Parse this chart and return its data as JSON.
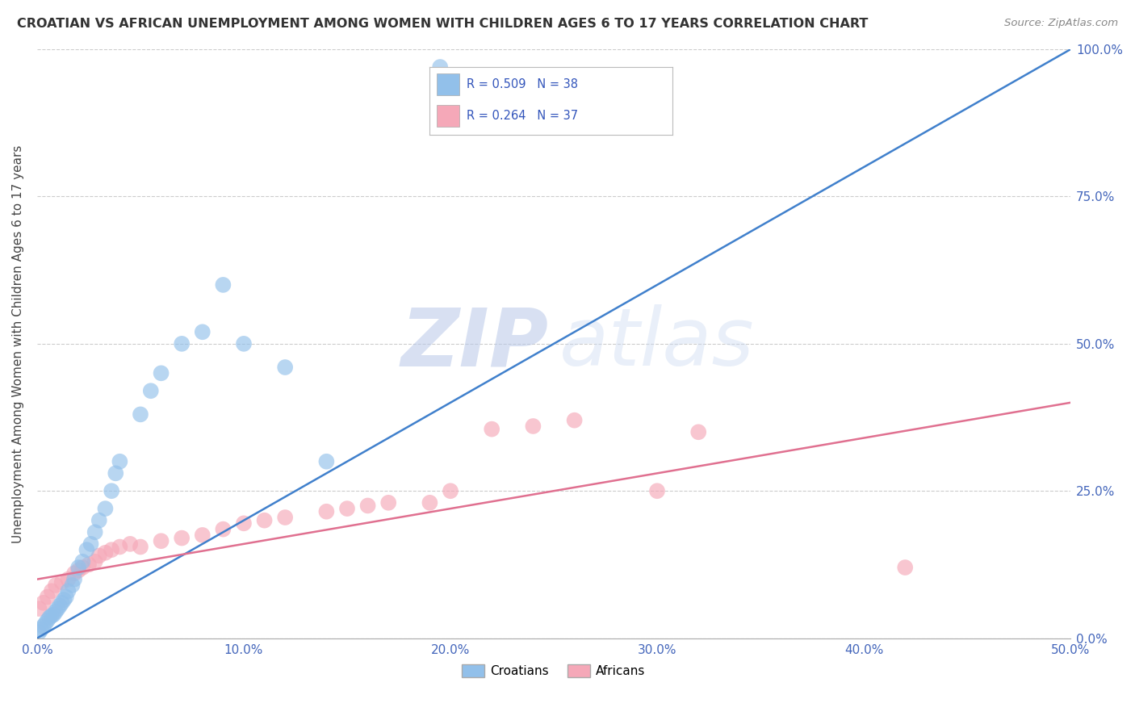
{
  "title": "CROATIAN VS AFRICAN UNEMPLOYMENT AMONG WOMEN WITH CHILDREN AGES 6 TO 17 YEARS CORRELATION CHART",
  "source": "Source: ZipAtlas.com",
  "ylabel": "Unemployment Among Women with Children Ages 6 to 17 years",
  "xlim": [
    0.0,
    0.5
  ],
  "ylim": [
    0.0,
    1.0
  ],
  "xticks": [
    0.0,
    0.1,
    0.2,
    0.3,
    0.4,
    0.5
  ],
  "xticklabels": [
    "0.0%",
    "10.0%",
    "20.0%",
    "30.0%",
    "40.0%",
    "50.0%"
  ],
  "yticks": [
    0.0,
    0.25,
    0.5,
    0.75,
    1.0
  ],
  "yticklabels": [
    "0.0%",
    "25.0%",
    "50.0%",
    "75.0%",
    "100.0%"
  ],
  "croatian_color": "#92C0EA",
  "african_color": "#F5A8B8",
  "croatian_line_color": "#4080CC",
  "african_line_color": "#E07090",
  "legend_r_croatian": "R = 0.509",
  "legend_n_croatian": "N = 38",
  "legend_r_african": "R = 0.264",
  "legend_n_african": "N = 37",
  "legend_text_color": "#3355BB",
  "watermark_zip": "ZIP",
  "watermark_atlas": "atlas",
  "background_color": "#ffffff",
  "tick_color": "#4466BB",
  "ylabel_color": "#444444",
  "title_color": "#333333",
  "source_color": "#888888",
  "grid_color": "#CCCCCC",
  "croatian_x": [
    0.001,
    0.002,
    0.003,
    0.004,
    0.005,
    0.006,
    0.007,
    0.008,
    0.009,
    0.01,
    0.011,
    0.012,
    0.013,
    0.014,
    0.015,
    0.017,
    0.018,
    0.02,
    0.022,
    0.024,
    0.026,
    0.028,
    0.03,
    0.033,
    0.036,
    0.038,
    0.04,
    0.05,
    0.055,
    0.06,
    0.07,
    0.08,
    0.09,
    0.1,
    0.12,
    0.14,
    0.195,
    0.2
  ],
  "croatian_y": [
    0.01,
    0.015,
    0.02,
    0.025,
    0.03,
    0.035,
    0.038,
    0.04,
    0.045,
    0.05,
    0.055,
    0.06,
    0.065,
    0.07,
    0.08,
    0.09,
    0.1,
    0.12,
    0.13,
    0.15,
    0.16,
    0.18,
    0.2,
    0.22,
    0.25,
    0.28,
    0.3,
    0.38,
    0.42,
    0.45,
    0.5,
    0.52,
    0.6,
    0.5,
    0.46,
    0.3,
    0.97,
    0.94
  ],
  "african_x": [
    0.001,
    0.003,
    0.005,
    0.007,
    0.009,
    0.012,
    0.015,
    0.018,
    0.02,
    0.022,
    0.025,
    0.028,
    0.03,
    0.033,
    0.036,
    0.04,
    0.045,
    0.05,
    0.06,
    0.07,
    0.08,
    0.09,
    0.1,
    0.11,
    0.12,
    0.14,
    0.15,
    0.16,
    0.17,
    0.19,
    0.2,
    0.22,
    0.24,
    0.26,
    0.3,
    0.32,
    0.42
  ],
  "african_y": [
    0.05,
    0.06,
    0.07,
    0.08,
    0.09,
    0.095,
    0.1,
    0.11,
    0.115,
    0.12,
    0.125,
    0.13,
    0.14,
    0.145,
    0.15,
    0.155,
    0.16,
    0.155,
    0.165,
    0.17,
    0.175,
    0.185,
    0.195,
    0.2,
    0.205,
    0.215,
    0.22,
    0.225,
    0.23,
    0.23,
    0.25,
    0.355,
    0.36,
    0.37,
    0.25,
    0.35,
    0.12
  ],
  "croatian_line_x": [
    0.0,
    0.5
  ],
  "croatian_line_y": [
    0.0,
    1.0
  ],
  "african_line_x": [
    0.0,
    0.5
  ],
  "african_line_y": [
    0.1,
    0.4
  ]
}
